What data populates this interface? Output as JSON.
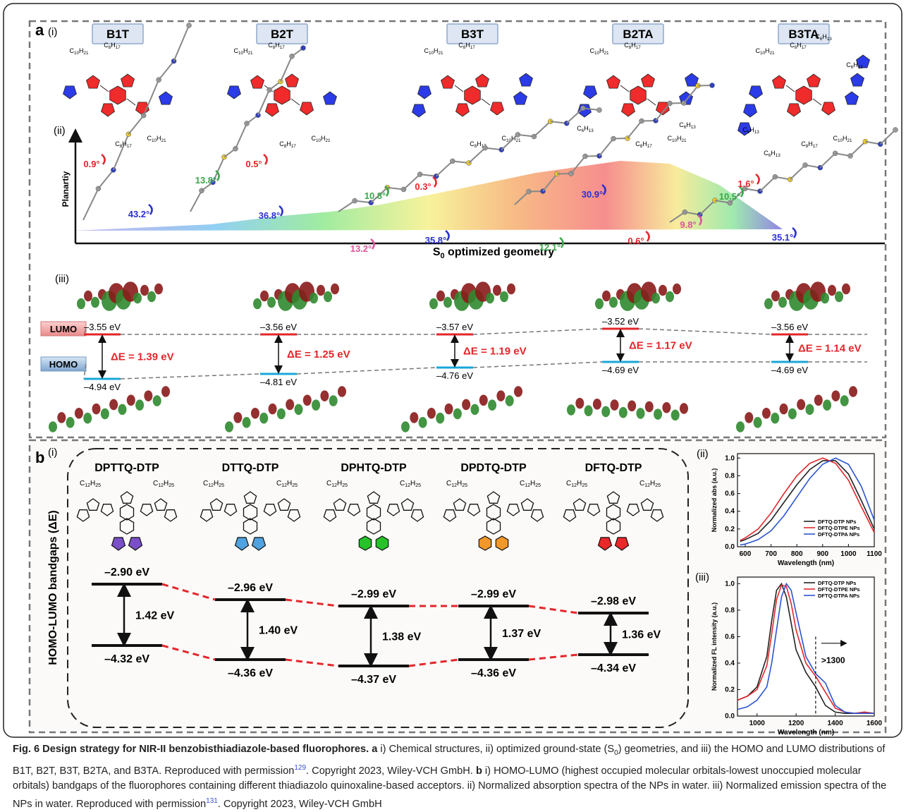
{
  "panel_a": {
    "label": "a",
    "sub_i": "(i)",
    "sub_ii": "(ii)",
    "sub_iii": "(iii)",
    "molecules": [
      {
        "name": "B1T",
        "alkyl": [
          "C10H21",
          "C8H17",
          "C8H17",
          "C10H21"
        ]
      },
      {
        "name": "B2T",
        "alkyl": [
          "C10H21",
          "C8H17",
          "C8H17",
          "C10H21"
        ]
      },
      {
        "name": "B3T",
        "alkyl": [
          "C10H21",
          "C8H17",
          "C8H17",
          "C10H21"
        ]
      },
      {
        "name": "B2TA",
        "alkyl": [
          "C10H21",
          "C8H17",
          "C6H13",
          "C6H13",
          "C8H17",
          "C10H21"
        ]
      },
      {
        "name": "B3TA",
        "alkyl": [
          "C10H21",
          "C8H17",
          "C6H13",
          "C6H13",
          "C6H13",
          "C8H17",
          "C10H21",
          "C6H13"
        ]
      }
    ],
    "planarity_label": "Planartiy",
    "angles": [
      {
        "label": "0.9°",
        "color": "#e3262b"
      },
      {
        "label": "43.2°",
        "color": "#2a2fd0"
      },
      {
        "label": "0.5°",
        "color": "#e3262b"
      },
      {
        "label": "13.8°",
        "color": "#3aa64a"
      },
      {
        "label": "36.8°",
        "color": "#2a2fd0"
      },
      {
        "label": "10.8°",
        "color": "#3aa64a"
      },
      {
        "label": "0.3°",
        "color": "#e3262b"
      },
      {
        "label": "13.2°",
        "color": "#d9559a"
      },
      {
        "label": "35.8°",
        "color": "#2a2fd0"
      },
      {
        "label": "30.9°",
        "color": "#2a2fd0"
      },
      {
        "label": "12.1°",
        "color": "#3aa64a"
      },
      {
        "label": "0.6°",
        "color": "#e3262b"
      },
      {
        "label": "9.8°",
        "color": "#d9559a"
      },
      {
        "label": "10.5°",
        "color": "#3aa64a"
      },
      {
        "label": "1.6°",
        "color": "#e3262b"
      },
      {
        "label": "35.1°",
        "color": "#2a2fd0"
      }
    ],
    "axis_label": {
      "symbol": "S",
      "subscript": "0",
      "text": " optimized geometry"
    },
    "lumo_tag": "LUMO",
    "homo_tag": "HOMO",
    "levels": [
      {
        "lumo": "–3.55 eV",
        "homo": "–4.94 eV",
        "gap": "ΔE = 1.39 eV"
      },
      {
        "lumo": "–3.56 eV",
        "homo": "–4.81 eV",
        "gap": "ΔE = 1.25 eV"
      },
      {
        "lumo": "–3.57 eV",
        "homo": "–4.76 eV",
        "gap": "ΔE = 1.19 eV"
      },
      {
        "lumo": "–3.52 eV",
        "homo": "–4.69 eV",
        "gap": "ΔE = 1.17 eV"
      },
      {
        "lumo": "–3.56 eV",
        "homo": "–4.69 eV",
        "gap": "ΔE = 1.14 eV"
      }
    ]
  },
  "panel_b": {
    "label": "b",
    "sub_i": "(i)",
    "sub_ii": "(ii)",
    "sub_iii": "(iii)",
    "y_label": "HOMO-LUMO bandgaps (ΔE)",
    "molecules": [
      {
        "name": "DPTTQ-DTP",
        "alkyl": [
          "C12H25",
          "C12H25"
        ],
        "color": "#7b4fc9",
        "lumo": "–2.90 eV",
        "homo": "–4.32 eV",
        "gap": "1.42 eV"
      },
      {
        "name": "DTTQ-DTP",
        "alkyl": [
          "C12H25",
          "C12H25"
        ],
        "color": "#4fa3e0",
        "lumo": "–2.96 eV",
        "homo": "–4.36 eV",
        "gap": "1.40 eV"
      },
      {
        "name": "DPHTQ-DTP",
        "alkyl": [
          "C12H25",
          "C12H25"
        ],
        "color": "#27c22a",
        "lumo": "–2.99 eV",
        "homo": "–4.37 eV",
        "gap": "1.38 eV"
      },
      {
        "name": "DPDTQ-DTP",
        "alkyl": [
          "C12H25",
          "C12H25"
        ],
        "color": "#f2972a",
        "lumo": "–2.99 eV",
        "homo": "–4.36 eV",
        "gap": "1.37 eV"
      },
      {
        "name": "DFTQ-DTP",
        "alkyl": [
          "C12H25",
          "C12H25"
        ],
        "color": "#e8282a",
        "lumo": "–2.98 eV",
        "homo": "–4.34 eV",
        "gap": "1.36 eV"
      }
    ]
  },
  "chart_data": [
    {
      "type": "line",
      "x_label": "Wavelength (nm)",
      "y_label": "Normalized abs (a.u.)",
      "xlim": [
        570,
        1100
      ],
      "xticks": [
        600,
        700,
        800,
        900,
        1000,
        1100
      ],
      "ylim": [
        0,
        1.05
      ],
      "yticks": [
        {
          "value": 0,
          "label": "0.0"
        },
        0.2,
        0.4,
        0.6,
        0.8,
        {
          "value": 1,
          "label": "1.0"
        }
      ],
      "legend": "lower right",
      "x": [
        580,
        600,
        650,
        700,
        750,
        800,
        850,
        900,
        950,
        1000,
        1050,
        1100
      ],
      "series": [
        {
          "name": "DFTQ-DTP NPs",
          "color": "#222222",
          "values": [
            0.06,
            0.08,
            0.15,
            0.3,
            0.5,
            0.7,
            0.87,
            0.97,
            0.97,
            0.82,
            0.52,
            0.2
          ]
        },
        {
          "name": "DFTQ-DTPE NPs",
          "color": "#e3262b",
          "values": [
            0.07,
            0.1,
            0.2,
            0.38,
            0.6,
            0.8,
            0.94,
            1.0,
            0.94,
            0.75,
            0.45,
            0.16
          ]
        },
        {
          "name": "DFTQ-DTPA NPs",
          "color": "#2a55d0",
          "values": [
            0.02,
            0.03,
            0.08,
            0.18,
            0.35,
            0.56,
            0.77,
            0.93,
            1.0,
            0.93,
            0.68,
            0.3
          ]
        }
      ]
    },
    {
      "type": "line",
      "x_label": "Wavelength (nm)",
      "y_label": "Normalized FL intensity (a.u.)",
      "xlim": [
        900,
        1600
      ],
      "xticks": [
        1000,
        1200,
        1400,
        1600
      ],
      "ylim": [
        0,
        1.05
      ],
      "yticks": [
        {
          "value": 0,
          "label": "0.0"
        },
        0.2,
        0.4,
        0.6,
        0.8,
        {
          "value": 1,
          "label": "1.0"
        }
      ],
      "legend": "upper right",
      "annotation": {
        "text": ">1300",
        "x": 1300
      },
      "x": [
        900,
        950,
        1000,
        1050,
        1075,
        1100,
        1125,
        1150,
        1175,
        1200,
        1250,
        1300,
        1350,
        1400,
        1450,
        1500,
        1550,
        1600
      ],
      "series": [
        {
          "name": "DFTQ-DTP NPs",
          "color": "#222222",
          "values": [
            0.12,
            0.15,
            0.22,
            0.45,
            0.72,
            0.95,
            1.0,
            0.9,
            0.7,
            0.5,
            0.33,
            0.22,
            0.08,
            0.03,
            0.02,
            0.02,
            0.03,
            0.02
          ]
        },
        {
          "name": "DFTQ-DTPE NPs",
          "color": "#e3262b",
          "values": [
            0.12,
            0.15,
            0.2,
            0.38,
            0.62,
            0.88,
            0.99,
            0.98,
            0.85,
            0.65,
            0.4,
            0.3,
            0.18,
            0.06,
            0.03,
            0.02,
            0.03,
            0.02
          ]
        },
        {
          "name": "DFTQ-DTPA NPs",
          "color": "#2a55d0",
          "values": [
            0.05,
            0.07,
            0.12,
            0.22,
            0.4,
            0.65,
            0.9,
            1.0,
            0.95,
            0.78,
            0.45,
            0.32,
            0.25,
            0.08,
            0.03,
            0.02,
            0.02,
            0.02
          ]
        }
      ]
    }
  ],
  "caption": [
    "Fig. 6 Design strategy for NIR-II benzobisthiadiazole-based fluorophores.",
    "a",
    "i) Chemical structures, ii) optimized ground-state (S",
    "0",
    ") geometries, and iii) the HOMO and LUMO distributions of B1T, B2T, B3T, B2TA, and B3TA. Reproduced with permission",
    "129",
    ". Copyright 2023, Wiley-VCH GmbH.",
    "b",
    "i) HOMO-LUMO (highest occupied molecular orbitals-lowest unoccupied molecular orbitals) bandgaps of the fluorophores containing different thiadiazolo quinoxaline-based acceptors. ii) Normalized absorption spectra of the NPs in water. iii) Normalized emission spectra of the NPs in water. Reproduced with permission",
    "131",
    ". Copyright 2023, Wiley-VCH GmbH"
  ]
}
